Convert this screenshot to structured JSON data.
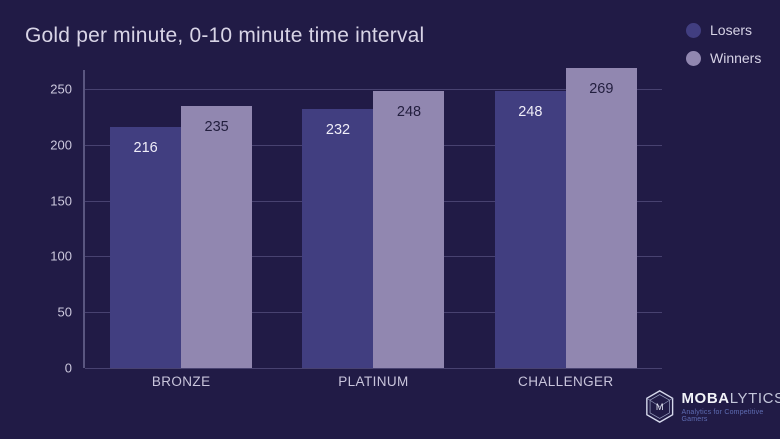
{
  "page": {
    "background": "#211b46"
  },
  "header": {
    "title": "Gold per minute, 0-10 minute time interval"
  },
  "chart_data": {
    "type": "bar",
    "title": "Gold per minute, 0-10 minute time interval",
    "categories": [
      "BRONZE",
      "PLATINUM",
      "CHALLENGER"
    ],
    "series": [
      {
        "name": "Losers",
        "color": "#413e80",
        "label_color": "#efedf8",
        "values": [
          216,
          232,
          248
        ]
      },
      {
        "name": "Winners",
        "color": "#9187b0",
        "label_color": "#221e3e",
        "values": [
          235,
          248,
          269
        ]
      }
    ],
    "xlabel": "",
    "ylabel": "",
    "ylim": [
      0,
      267
    ],
    "yticks": [
      0,
      50,
      100,
      150,
      200,
      250
    ],
    "grid": true,
    "legend_position": "top-right",
    "grid_color": "#484270",
    "axis_color": "#5a5680"
  },
  "branding": {
    "logo_text_bold": "MOBA",
    "logo_text_light": "LYTICS",
    "tagline": "Analytics for Competitive Gamers",
    "monogram": "M"
  }
}
